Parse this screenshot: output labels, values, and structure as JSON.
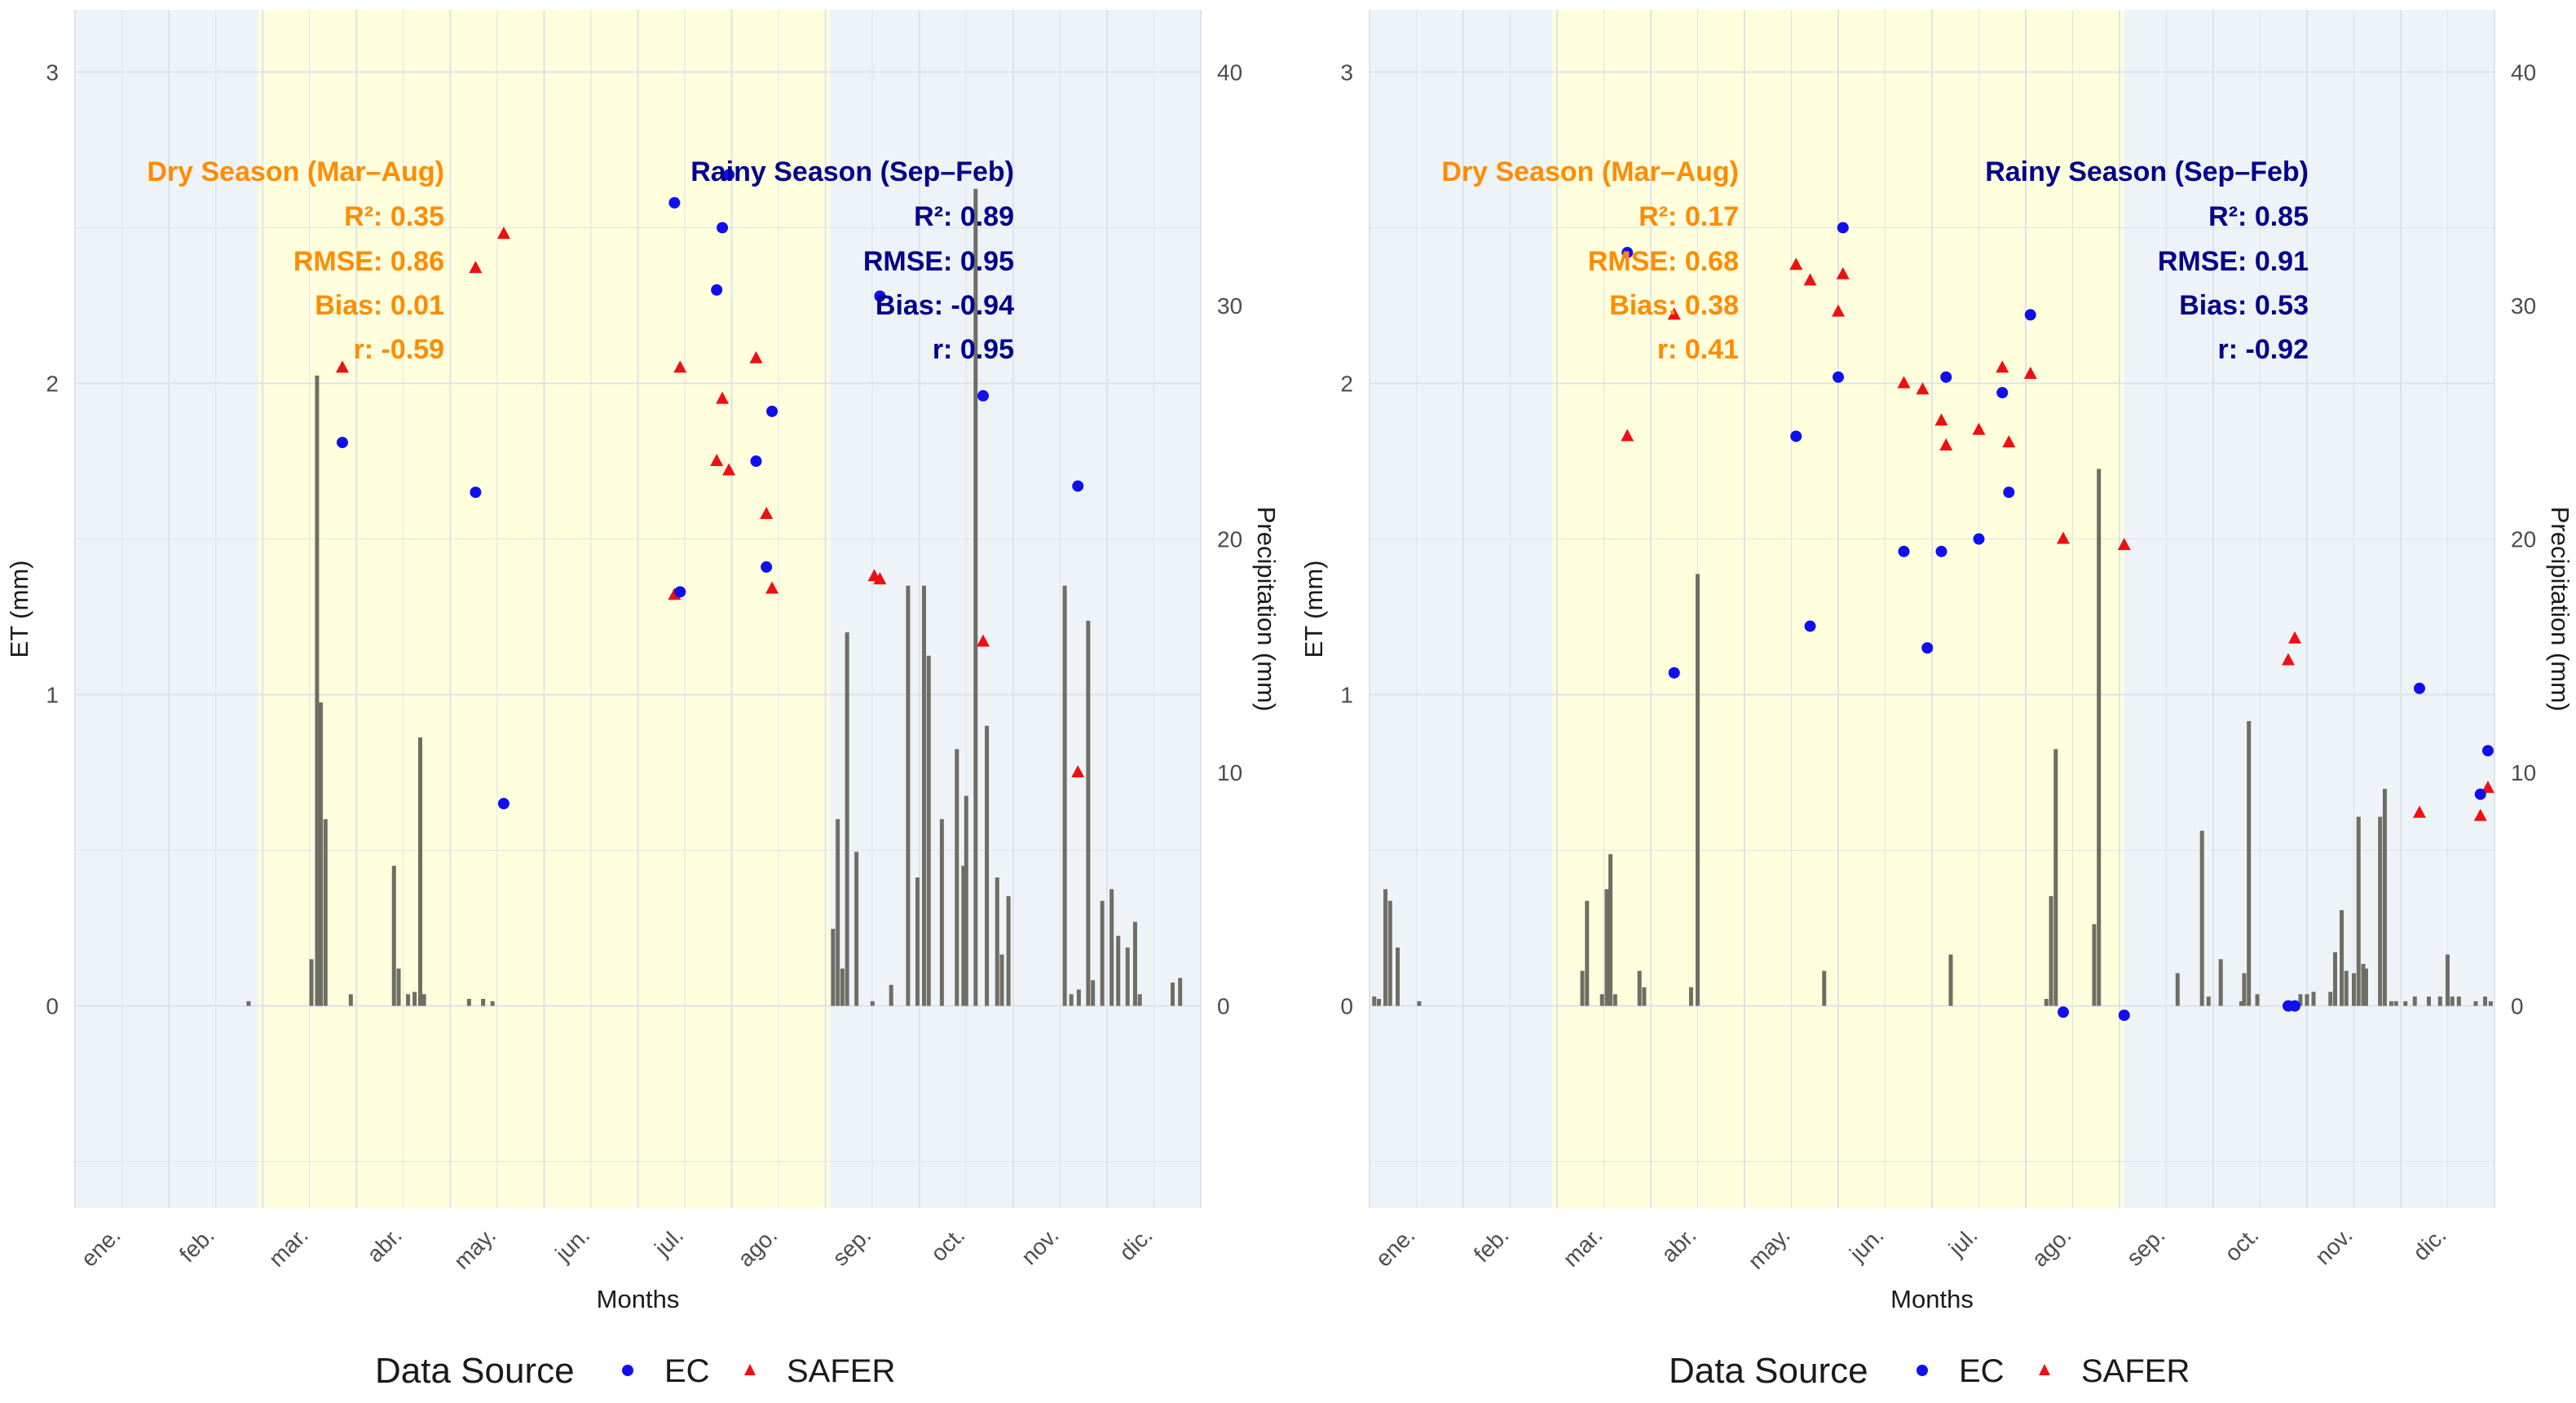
{
  "colors": {
    "dry_band": "#ffffdd",
    "outside_band": "#eef3f8",
    "grid": "#dde3ea",
    "bar": "#6e6e64",
    "ec": "#1010ee",
    "safer": "#ee1010",
    "dry_text": "#ff8c00",
    "rainy_text": "#00008b"
  },
  "legend": {
    "title": "Data Source",
    "items": [
      {
        "label": "EC",
        "shape": "circle"
      },
      {
        "label": "SAFER",
        "shape": "triangle"
      }
    ]
  },
  "chart_data": [
    {
      "type": "scatter+bar",
      "xlabel": "Months",
      "ylabel": "ET (mm)",
      "y2label": "Precipitation (mm)",
      "xlim": [
        0,
        12
      ],
      "ylim": [
        -0.65,
        3.2
      ],
      "y2lim": [
        -8.67,
        42.67
      ],
      "yticks": [
        0,
        1,
        2,
        3
      ],
      "y2ticks": [
        0,
        10,
        20,
        30,
        40
      ],
      "month_labels": [
        "ene.",
        "feb.",
        "mar.",
        "abr.",
        "may.",
        "jun.",
        "jul.",
        "ago.",
        "sep.",
        "oct.",
        "nov.",
        "dic."
      ],
      "dry_season_range": [
        1.95,
        8.05
      ],
      "dry_stats": {
        "title": "Dry Season (Mar–Aug)",
        "r2": "R²: 0.35",
        "rmse": "RMSE: 0.86",
        "bias": "Bias: 0.01",
        "r": "r: -0.59"
      },
      "rainy_stats": {
        "title": "Rainy Season (Sep–Feb)",
        "r2": "R²: 0.89",
        "rmse": "RMSE: 0.95",
        "bias": "Bias: -0.94",
        "r": "r: 0.95"
      },
      "ec": [
        [
          2.85,
          1.81
        ],
        [
          4.27,
          1.65
        ],
        [
          4.57,
          0.65
        ],
        [
          6.39,
          2.58
        ],
        [
          6.45,
          1.33
        ],
        [
          6.84,
          2.3
        ],
        [
          6.9,
          2.5
        ],
        [
          6.97,
          2.67
        ],
        [
          7.26,
          1.75
        ],
        [
          7.37,
          1.41
        ],
        [
          7.43,
          1.91
        ],
        [
          8.58,
          2.28
        ],
        [
          9.68,
          1.96
        ],
        [
          10.69,
          1.67
        ]
      ],
      "safer": [
        [
          2.85,
          2.05
        ],
        [
          4.27,
          2.37
        ],
        [
          4.57,
          2.48
        ],
        [
          6.39,
          1.32
        ],
        [
          6.45,
          2.05
        ],
        [
          6.84,
          1.75
        ],
        [
          6.9,
          1.95
        ],
        [
          6.97,
          1.72
        ],
        [
          7.26,
          2.08
        ],
        [
          7.37,
          1.58
        ],
        [
          7.43,
          1.34
        ],
        [
          8.52,
          1.38
        ],
        [
          8.58,
          1.37
        ],
        [
          9.68,
          1.17
        ],
        [
          10.69,
          0.75
        ]
      ],
      "precip": [
        [
          1.85,
          0.2
        ],
        [
          2.52,
          2
        ],
        [
          2.58,
          27
        ],
        [
          2.62,
          13
        ],
        [
          2.67,
          8
        ],
        [
          2.94,
          0.5
        ],
        [
          3.4,
          6
        ],
        [
          3.45,
          1.6
        ],
        [
          3.55,
          0.5
        ],
        [
          3.62,
          0.6
        ],
        [
          3.68,
          11.5
        ],
        [
          3.72,
          0.5
        ],
        [
          4.2,
          0.3
        ],
        [
          4.35,
          0.3
        ],
        [
          4.45,
          0.2
        ],
        [
          8.08,
          3.3
        ],
        [
          8.13,
          8
        ],
        [
          8.18,
          1.6
        ],
        [
          8.23,
          16
        ],
        [
          8.33,
          6.6
        ],
        [
          8.5,
          0.2
        ],
        [
          8.7,
          0.9
        ],
        [
          8.88,
          18
        ],
        [
          8.98,
          5.5
        ],
        [
          9.05,
          18
        ],
        [
          9.1,
          15
        ],
        [
          9.24,
          8
        ],
        [
          9.4,
          11
        ],
        [
          9.47,
          6
        ],
        [
          9.5,
          9
        ],
        [
          9.6,
          35
        ],
        [
          9.72,
          12
        ],
        [
          9.83,
          5.5
        ],
        [
          9.88,
          2.2
        ],
        [
          9.95,
          4.7
        ],
        [
          10.55,
          18
        ],
        [
          10.62,
          0.5
        ],
        [
          10.7,
          0.7
        ],
        [
          10.8,
          16.5
        ],
        [
          10.85,
          1.1
        ],
        [
          10.95,
          4.5
        ],
        [
          11.05,
          5
        ],
        [
          11.12,
          3
        ],
        [
          11.22,
          2.5
        ],
        [
          11.3,
          3.6
        ],
        [
          11.35,
          0.5
        ],
        [
          11.7,
          1
        ],
        [
          11.78,
          1.2
        ]
      ]
    },
    {
      "type": "scatter+bar",
      "xlabel": "Months",
      "ylabel": "ET (mm)",
      "y2label": "Precipitation (mm)",
      "xlim": [
        0,
        12
      ],
      "ylim": [
        -0.65,
        3.2
      ],
      "y2lim": [
        -8.67,
        42.67
      ],
      "yticks": [
        0,
        1,
        2,
        3
      ],
      "y2ticks": [
        0,
        10,
        20,
        30,
        40
      ],
      "month_labels": [
        "ene.",
        "feb.",
        "mar.",
        "abr.",
        "may.",
        "jun.",
        "jul.",
        "ago.",
        "sep.",
        "oct.",
        "nov.",
        "dic."
      ],
      "dry_season_range": [
        1.95,
        8.05
      ],
      "dry_stats": {
        "title": "Dry Season (Mar–Aug)",
        "r2": "R²: 0.17",
        "rmse": "RMSE: 0.68",
        "bias": "Bias: 0.38",
        "r": "r: 0.41"
      },
      "rainy_stats": {
        "title": "Rainy Season (Sep–Feb)",
        "r2": "R²: 0.85",
        "rmse": "RMSE: 0.91",
        "bias": "Bias: 0.53",
        "r": "r: -0.92"
      },
      "ec": [
        [
          2.75,
          2.42
        ],
        [
          3.25,
          1.07
        ],
        [
          4.55,
          1.83
        ],
        [
          4.7,
          1.22
        ],
        [
          5.0,
          2.02
        ],
        [
          5.05,
          2.5
        ],
        [
          5.7,
          1.46
        ],
        [
          5.95,
          1.15
        ],
        [
          6.1,
          1.46
        ],
        [
          6.15,
          2.02
        ],
        [
          6.5,
          1.5
        ],
        [
          6.75,
          1.97
        ],
        [
          6.82,
          1.65
        ],
        [
          7.05,
          2.22
        ],
        [
          7.4,
          -0.02
        ],
        [
          8.05,
          -0.03
        ],
        [
          9.8,
          0.0
        ],
        [
          9.87,
          0.0
        ],
        [
          11.2,
          1.02
        ],
        [
          11.85,
          0.68
        ],
        [
          11.93,
          0.82
        ]
      ],
      "safer": [
        [
          2.75,
          1.83
        ],
        [
          3.25,
          2.22
        ],
        [
          4.55,
          2.38
        ],
        [
          4.7,
          2.33
        ],
        [
          5.0,
          2.23
        ],
        [
          5.05,
          2.35
        ],
        [
          5.7,
          2.0
        ],
        [
          5.9,
          1.98
        ],
        [
          6.1,
          1.88
        ],
        [
          6.15,
          1.8
        ],
        [
          6.5,
          1.85
        ],
        [
          6.75,
          2.05
        ],
        [
          6.82,
          1.81
        ],
        [
          7.05,
          2.03
        ],
        [
          7.4,
          1.5
        ],
        [
          8.05,
          1.48
        ],
        [
          9.8,
          1.11
        ],
        [
          9.87,
          1.18
        ],
        [
          11.2,
          0.62
        ],
        [
          11.85,
          0.61
        ],
        [
          11.93,
          0.7
        ]
      ],
      "precip": [
        [
          0.05,
          0.4
        ],
        [
          0.1,
          0.3
        ],
        [
          0.17,
          5
        ],
        [
          0.22,
          4.5
        ],
        [
          0.3,
          2.5
        ],
        [
          0.53,
          0.2
        ],
        [
          2.27,
          1.5
        ],
        [
          2.32,
          4.5
        ],
        [
          2.48,
          0.5
        ],
        [
          2.53,
          5
        ],
        [
          2.57,
          6.5
        ],
        [
          2.62,
          0.5
        ],
        [
          2.88,
          1.5
        ],
        [
          2.93,
          0.8
        ],
        [
          3.43,
          0.8
        ],
        [
          3.5,
          18.5
        ],
        [
          4.85,
          1.5
        ],
        [
          6.2,
          2.2
        ],
        [
          7.22,
          0.3
        ],
        [
          7.27,
          4.7
        ],
        [
          7.32,
          11
        ],
        [
          7.73,
          3.5
        ],
        [
          7.78,
          23
        ],
        [
          8.62,
          1.4
        ],
        [
          8.88,
          7.5
        ],
        [
          8.95,
          0.4
        ],
        [
          9.08,
          2
        ],
        [
          9.3,
          0.2
        ],
        [
          9.33,
          1.4
        ],
        [
          9.38,
          12.2
        ],
        [
          9.47,
          0.5
        ],
        [
          9.93,
          0.5
        ],
        [
          10.0,
          0.5
        ],
        [
          10.07,
          0.6
        ],
        [
          10.25,
          0.6
        ],
        [
          10.3,
          2.3
        ],
        [
          10.37,
          4.1
        ],
        [
          10.42,
          1.5
        ],
        [
          10.5,
          1.4
        ],
        [
          10.55,
          8.1
        ],
        [
          10.6,
          1.8
        ],
        [
          10.63,
          1.6
        ],
        [
          10.78,
          8.1
        ],
        [
          10.83,
          9.3
        ],
        [
          10.9,
          0.2
        ],
        [
          10.95,
          0.2
        ],
        [
          11.05,
          0.2
        ],
        [
          11.15,
          0.4
        ],
        [
          11.3,
          0.4
        ],
        [
          11.42,
          0.4
        ],
        [
          11.5,
          2.2
        ],
        [
          11.55,
          0.4
        ],
        [
          11.62,
          0.4
        ],
        [
          11.8,
          0.2
        ],
        [
          11.9,
          0.4
        ],
        [
          11.96,
          0.2
        ]
      ]
    }
  ]
}
